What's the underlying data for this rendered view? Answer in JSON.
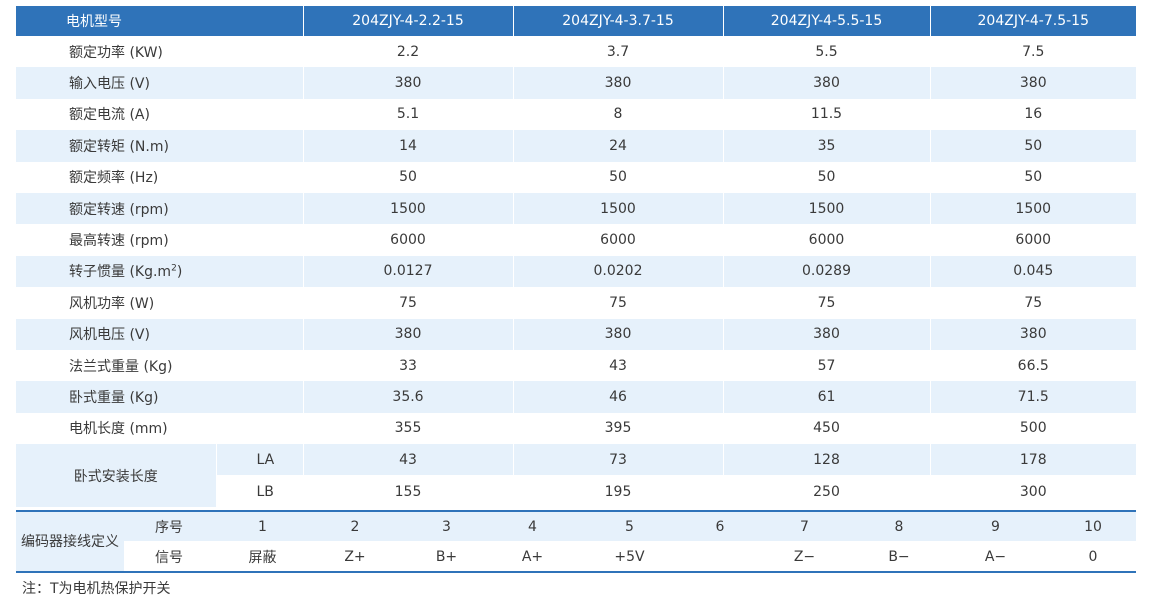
{
  "header": {
    "label": "电机型号",
    "models": [
      "204ZJY-4-2.2-15",
      "204ZJY-4-3.7-15",
      "204ZJY-4-5.5-15",
      "204ZJY-4-7.5-15"
    ]
  },
  "rows": [
    {
      "label": "额定功率 (KW)",
      "values": [
        "2.2",
        "3.7",
        "5.5",
        "7.5"
      ]
    },
    {
      "label": "输入电压 (V)",
      "values": [
        "380",
        "380",
        "380",
        "380"
      ]
    },
    {
      "label": "额定电流 (A)",
      "values": [
        "5.1",
        "8",
        "11.5",
        "16"
      ]
    },
    {
      "label": "额定转矩 (N.m)",
      "values": [
        "14",
        "24",
        "35",
        "50"
      ]
    },
    {
      "label": "额定频率 (Hz)",
      "values": [
        "50",
        "50",
        "50",
        "50"
      ]
    },
    {
      "label": "额定转速 (rpm)",
      "values": [
        "1500",
        "1500",
        "1500",
        "1500"
      ]
    },
    {
      "label": "最高转速 (rpm)",
      "values": [
        "6000",
        "6000",
        "6000",
        "6000"
      ]
    },
    {
      "label": "转子惯量 (Kg.m",
      "label_sup": "2",
      "label_end": ")",
      "values": [
        "0.0127",
        "0.0202",
        "0.0289",
        "0.045"
      ]
    },
    {
      "label": "风机功率 (W)",
      "values": [
        "75",
        "75",
        "75",
        "75"
      ]
    },
    {
      "label": "风机电压 (V)",
      "values": [
        "380",
        "380",
        "380",
        "380"
      ]
    },
    {
      "label": "法兰式重量 (Kg)",
      "values": [
        "33",
        "43",
        "57",
        "66.5"
      ]
    },
    {
      "label": "卧式重量 (Kg)",
      "values": [
        "35.6",
        "46",
        "61",
        "71.5"
      ]
    },
    {
      "label": "电机长度 (mm)",
      "values": [
        "355",
        "395",
        "450",
        "500"
      ]
    }
  ],
  "install": {
    "label": "卧式安装长度",
    "la": {
      "label": "LA",
      "values": [
        "43",
        "73",
        "128",
        "178"
      ]
    },
    "lb": {
      "label": "LB",
      "values": [
        "155",
        "195",
        "250",
        "300"
      ]
    }
  },
  "encoder": {
    "title": "编码器接线定义",
    "row1_label": "序号",
    "row2_label": "信号",
    "numbers": [
      "1",
      "2",
      "3",
      "4",
      "5",
      "6",
      "7",
      "8",
      "9",
      "10"
    ],
    "signals": [
      "屏蔽",
      "Z+",
      "B+",
      "A+",
      "+5V",
      "",
      "Z−",
      "B−",
      "A−",
      "0"
    ]
  },
  "note": "注：T为电机热保护开关"
}
